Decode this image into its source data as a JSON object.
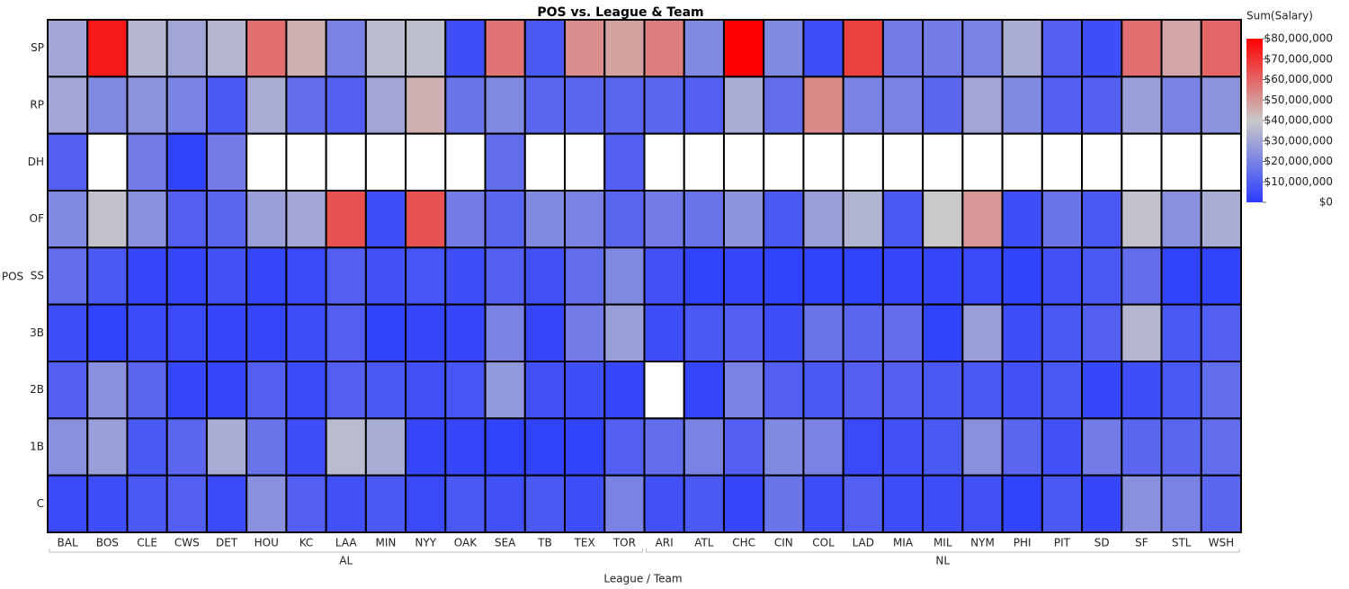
{
  "chart_data": {
    "type": "heatmap",
    "title": "POS vs. League & Team",
    "x_label": "League / Team",
    "y_label": "POS",
    "leagues": [
      {
        "name": "AL",
        "teams": [
          "BAL",
          "BOS",
          "CLE",
          "CWS",
          "DET",
          "HOU",
          "KC",
          "LAA",
          "MIN",
          "NYY",
          "OAK",
          "SEA",
          "TB",
          "TEX",
          "TOR"
        ]
      },
      {
        "name": "NL",
        "teams": [
          "ARI",
          "ATL",
          "CHC",
          "CIN",
          "COL",
          "LAD",
          "MIA",
          "MIL",
          "NYM",
          "PHI",
          "PIT",
          "SD",
          "SF",
          "STL",
          "WSH"
        ]
      }
    ],
    "rows": [
      "SP",
      "RP",
      "DH",
      "OF",
      "SS",
      "3B",
      "2B",
      "1B",
      "C"
    ],
    "values": [
      [
        30000000,
        75000000,
        35000000,
        30000000,
        35000000,
        58000000,
        45000000,
        20000000,
        36000000,
        37000000,
        5000000,
        57000000,
        8000000,
        52000000,
        48000000,
        55000000,
        22000000,
        80000000,
        22000000,
        5000000,
        67000000,
        18000000,
        18000000,
        20000000,
        32000000,
        10000000,
        5000000,
        58000000,
        47000000,
        60000000
      ],
      [
        30000000,
        22000000,
        25000000,
        20000000,
        8000000,
        32000000,
        14000000,
        10000000,
        30000000,
        45000000,
        16000000,
        22000000,
        12000000,
        12000000,
        12000000,
        12000000,
        10000000,
        32000000,
        14000000,
        53000000,
        20000000,
        20000000,
        12000000,
        30000000,
        22000000,
        10000000,
        10000000,
        28000000,
        20000000,
        25000000
      ],
      [
        10000000,
        null,
        18000000,
        2000000,
        18000000,
        null,
        null,
        null,
        null,
        null,
        null,
        14000000,
        null,
        null,
        10000000,
        null,
        null,
        null,
        null,
        null,
        null,
        null,
        null,
        null,
        null,
        null,
        null,
        null,
        null,
        null
      ],
      [
        22000000,
        38000000,
        24000000,
        10000000,
        12000000,
        28000000,
        30000000,
        64000000,
        5000000,
        64000000,
        18000000,
        12000000,
        22000000,
        20000000,
        12000000,
        18000000,
        16000000,
        25000000,
        8000000,
        28000000,
        34000000,
        8000000,
        40000000,
        50000000,
        5000000,
        16000000,
        8000000,
        38000000,
        24000000,
        32000000
      ],
      [
        14000000,
        8000000,
        3000000,
        3000000,
        6000000,
        3000000,
        4000000,
        10000000,
        6000000,
        7000000,
        5000000,
        10000000,
        6000000,
        14000000,
        22000000,
        6000000,
        2000000,
        3000000,
        2000000,
        2000000,
        2000000,
        3000000,
        3000000,
        4000000,
        2000000,
        6000000,
        8000000,
        14000000,
        2000000,
        2000000
      ],
      [
        5000000,
        2000000,
        4000000,
        4000000,
        3000000,
        3000000,
        5000000,
        10000000,
        2000000,
        3000000,
        3000000,
        20000000,
        3000000,
        18000000,
        28000000,
        5000000,
        8000000,
        10000000,
        5000000,
        16000000,
        12000000,
        14000000,
        2000000,
        28000000,
        5000000,
        8000000,
        10000000,
        35000000,
        8000000,
        10000000
      ],
      [
        10000000,
        24000000,
        12000000,
        3000000,
        3000000,
        10000000,
        4000000,
        10000000,
        8000000,
        6000000,
        7000000,
        26000000,
        6000000,
        5000000,
        3000000,
        null,
        3000000,
        20000000,
        10000000,
        8000000,
        10000000,
        10000000,
        8000000,
        8000000,
        6000000,
        8000000,
        3000000,
        5000000,
        8000000,
        14000000
      ],
      [
        24000000,
        28000000,
        8000000,
        12000000,
        32000000,
        16000000,
        5000000,
        36000000,
        32000000,
        3000000,
        3000000,
        2000000,
        2000000,
        2000000,
        10000000,
        14000000,
        20000000,
        10000000,
        22000000,
        20000000,
        4000000,
        6000000,
        8000000,
        24000000,
        12000000,
        6000000,
        18000000,
        12000000,
        12000000,
        14000000
      ],
      [
        4000000,
        5000000,
        8000000,
        10000000,
        4000000,
        24000000,
        10000000,
        6000000,
        8000000,
        4000000,
        8000000,
        6000000,
        8000000,
        5000000,
        20000000,
        6000000,
        8000000,
        3000000,
        16000000,
        5000000,
        10000000,
        5000000,
        5000000,
        6000000,
        2000000,
        8000000,
        3000000,
        24000000,
        20000000,
        12000000
      ]
    ],
    "colorbar_title": "Sum(Salary)",
    "zlim": [
      0,
      80000000
    ],
    "colorscale": [
      "#2a3cff",
      "#c9c9c9",
      "#ff0000"
    ],
    "zticks": [
      {
        "value": 80000000,
        "label": "$80,000,000"
      },
      {
        "value": 70000000,
        "label": "$70,000,000"
      },
      {
        "value": 60000000,
        "label": "$60,000,000"
      },
      {
        "value": 50000000,
        "label": "$50,000,000"
      },
      {
        "value": 40000000,
        "label": "$40,000,000"
      },
      {
        "value": 30000000,
        "label": "$30,000,000"
      },
      {
        "value": 20000000,
        "label": "$20,000,000"
      },
      {
        "value": 10000000,
        "label": "$10,000,000"
      },
      {
        "value": 0,
        "label": "$0"
      }
    ],
    "missing_color": "#ffffff"
  }
}
